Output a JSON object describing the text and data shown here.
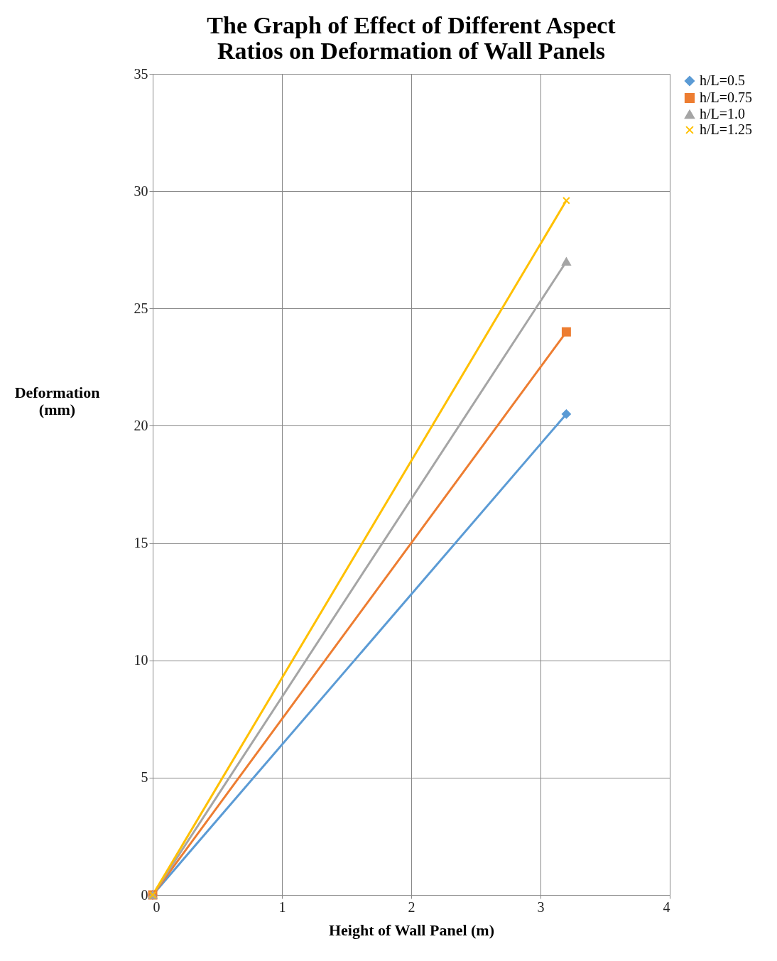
{
  "chart_data": {
    "type": "line",
    "title": [
      "The Graph of Effect of Different Aspect",
      "Ratios on Deformation of Wall Panels"
    ],
    "xlabel": "Height of Wall Panel (m)",
    "ylabel": [
      "Deformation",
      "(mm)"
    ],
    "x": [
      0,
      3.2
    ],
    "series": [
      {
        "name": "h/L=0.5",
        "color": "#5b9bd5",
        "marker": "diamond",
        "values": [
          0,
          20.5
        ]
      },
      {
        "name": "h/L=0.75",
        "color": "#ed7d31",
        "marker": "square",
        "values": [
          0,
          24.0
        ]
      },
      {
        "name": "h/L=1.0",
        "color": "#a5a5a5",
        "marker": "triangle",
        "values": [
          0,
          27.0
        ]
      },
      {
        "name": "h/L=1.25",
        "color": "#ffc000",
        "marker": "cross",
        "values": [
          0,
          29.6
        ]
      }
    ],
    "xlim": [
      0,
      4
    ],
    "xticks": [
      0,
      1,
      2,
      3,
      4
    ],
    "ylim": [
      0,
      35
    ],
    "yticks": [
      0,
      5,
      10,
      15,
      20,
      25,
      30,
      35
    ],
    "grid": true,
    "legend": "right",
    "line_style": "solid"
  }
}
